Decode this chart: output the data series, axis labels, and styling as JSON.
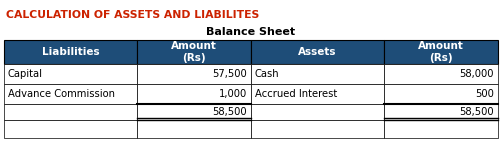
{
  "title": "CALCULATION OF ASSETS AND LIABILITES",
  "subtitle": "Balance Sheet",
  "title_color": "#cc2200",
  "subtitle_color": "#000000",
  "header_bg": "#1e4d78",
  "header_text_color": "#ffffff",
  "header_labels": [
    "Liabilities",
    "Amount\n(Rs)",
    "Assets",
    "Amount\n(Rs)"
  ],
  "liabilities": [
    "Capital",
    "Advance Commission"
  ],
  "liabilities_amounts": [
    "57,500",
    "1,000"
  ],
  "liabilities_total": "58,500",
  "assets": [
    "Cash",
    "Accrued Interest"
  ],
  "assets_amounts": [
    "58,000",
    "500"
  ],
  "assets_total": "58,500",
  "col_splits": [
    0.0,
    0.27,
    0.5,
    0.77,
    1.0
  ],
  "background_color": "#ffffff",
  "cell_text_color": "#000000",
  "border_color": "#000000",
  "title_fontsize": 7.8,
  "subtitle_fontsize": 8.0,
  "header_fontsize": 7.5,
  "data_fontsize": 7.2
}
